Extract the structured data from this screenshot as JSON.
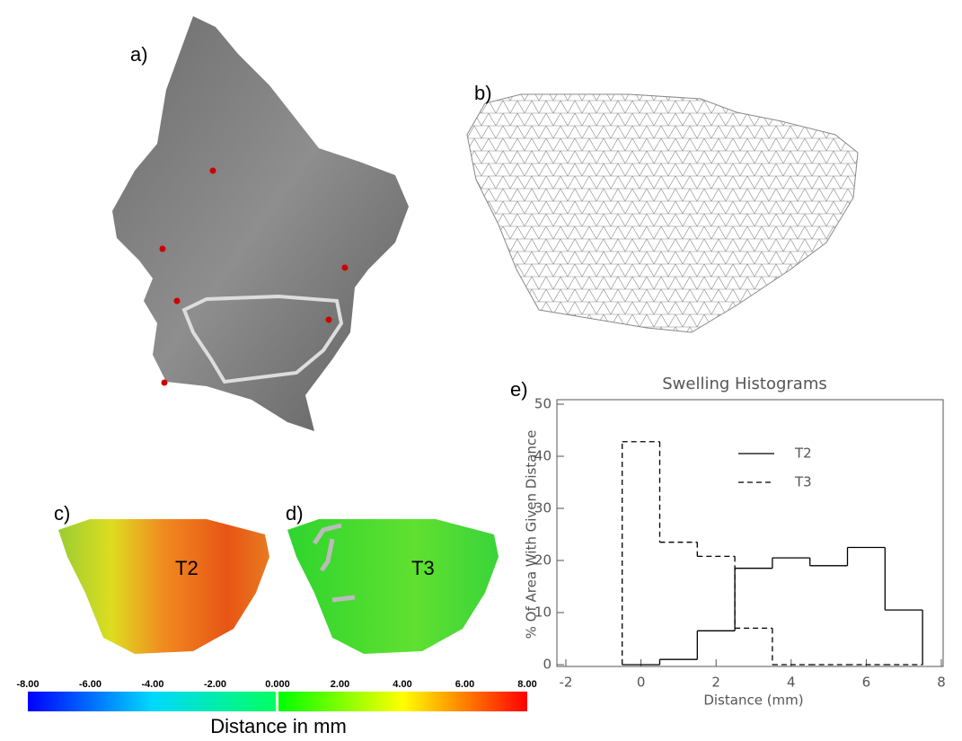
{
  "panels": {
    "a": "a)",
    "b": "b)",
    "c": "c)",
    "d": "d)",
    "e": "e)",
    "c_tag": "T2",
    "d_tag": "T3"
  },
  "colorbar": {
    "label": "Distance in mm",
    "lim": [
      -8,
      8
    ],
    "ticks": [
      {
        "value": -8,
        "label": "-8.00"
      },
      {
        "value": -6,
        "label": "-6.00"
      },
      {
        "value": -4,
        "label": "-4.00"
      },
      {
        "value": -2,
        "label": "-2.00"
      },
      {
        "value": 0,
        "label": "0.000"
      },
      {
        "value": 2,
        "label": "2.00"
      },
      {
        "value": 4,
        "label": "4.00"
      },
      {
        "value": 6,
        "label": "6.00"
      },
      {
        "value": 8,
        "label": "8.00"
      }
    ]
  },
  "chart_data": {
    "type": "histogram",
    "title": "Swelling Histograms",
    "x_label": "Distance (mm)",
    "y_label": "% Of Area With Given Distance",
    "bins": [
      -0.5,
      0.5,
      1.5,
      2.5,
      3.5,
      4.5,
      5.5,
      6.5,
      7.5
    ],
    "series": [
      {
        "name": "T2",
        "color": "#000000",
        "dash": "solid",
        "values": [
          0,
          1,
          6.5,
          18.5,
          20.5,
          19,
          22.5,
          10.5
        ]
      },
      {
        "name": "T3",
        "color": "#000000",
        "dash": "dashed",
        "values": [
          42.8,
          23.5,
          20.8,
          7,
          0,
          0,
          0,
          0
        ]
      }
    ],
    "xlim": [
      -2,
      8
    ],
    "xticks": [
      -2,
      0,
      2,
      4,
      6,
      8
    ],
    "ylim": [
      0,
      50
    ],
    "yticks": [
      0,
      10,
      20,
      30,
      40,
      50
    ]
  }
}
